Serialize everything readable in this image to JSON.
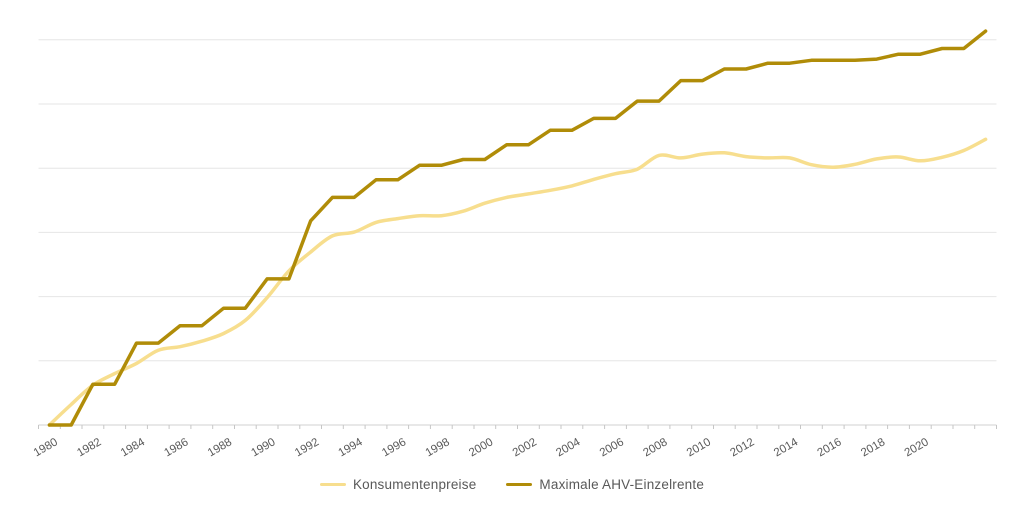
{
  "chart_data": {
    "type": "line",
    "title": "",
    "xlabel": "",
    "ylabel": "",
    "x": [
      "1980",
      "1981",
      "1982",
      "1983",
      "1984",
      "1985",
      "1986",
      "1987",
      "1988",
      "1989",
      "1990",
      "1991",
      "1992",
      "1993",
      "1994",
      "1995",
      "1996",
      "1997",
      "1998",
      "1999",
      "2000",
      "2001",
      "2002",
      "2003",
      "2004",
      "2005",
      "2006",
      "2007",
      "2008",
      "2009",
      "2010",
      "2011",
      "2012",
      "2013",
      "2014",
      "2015",
      "2016",
      "2017",
      "2018",
      "2019",
      "2020",
      "2021",
      "2022",
      "2023"
    ],
    "x_axis": {
      "label_years": [
        "1980",
        "1982",
        "1984",
        "1986",
        "1988",
        "1990",
        "1992",
        "1994",
        "1996",
        "1998",
        "2000",
        "2002",
        "2004",
        "2006",
        "2008",
        "2010",
        "2012",
        "2014",
        "2016",
        "2018",
        "2020"
      ],
      "label_rotation_deg": -30
    },
    "y_axis": {
      "min": 100,
      "max": 220,
      "gridline_step": 20,
      "labels_visible": false,
      "gridlines_visible": true
    },
    "legend_position": "bottom",
    "series": [
      {
        "name": "Konsumentenpreise",
        "color": "#F7DE8E",
        "smooth": true,
        "values": [
          100,
          106.4,
          112.4,
          116.0,
          119.2,
          123.3,
          124.4,
          126.1,
          128.5,
          132.6,
          139.7,
          148.0,
          153.9,
          158.9,
          160.1,
          163.1,
          164.3,
          165.2,
          165.2,
          166.6,
          169.1,
          170.9,
          172.0,
          173.1,
          174.5,
          176.5,
          178.3,
          179.7,
          184.0,
          183.2,
          184.4,
          184.8,
          183.6,
          183.2,
          183.2,
          181.1,
          180.3,
          181.2,
          182.9,
          183.5,
          182.3,
          183.4,
          185.5,
          189.0
        ]
      },
      {
        "name": "Maximale AHV-Einzelrente",
        "color": "#B08C08",
        "smooth": false,
        "values": [
          100,
          100,
          112.7,
          112.7,
          125.5,
          125.5,
          130.9,
          130.9,
          136.4,
          136.4,
          145.5,
          145.5,
          163.6,
          170.9,
          170.9,
          176.4,
          176.4,
          180.9,
          180.9,
          182.7,
          182.7,
          187.3,
          187.3,
          191.8,
          191.8,
          195.5,
          195.5,
          200.9,
          200.9,
          207.3,
          207.3,
          210.9,
          210.9,
          212.7,
          212.7,
          213.6,
          213.6,
          213.6,
          214.0,
          215.5,
          215.5,
          217.3,
          217.3,
          222.7
        ]
      }
    ],
    "palette": {
      "gridline": "#E6E6E6",
      "axis_line": "#D2D2D2",
      "tick": "#C6C6C6",
      "label_text": "#595959",
      "background": "#FFFFFF"
    }
  }
}
